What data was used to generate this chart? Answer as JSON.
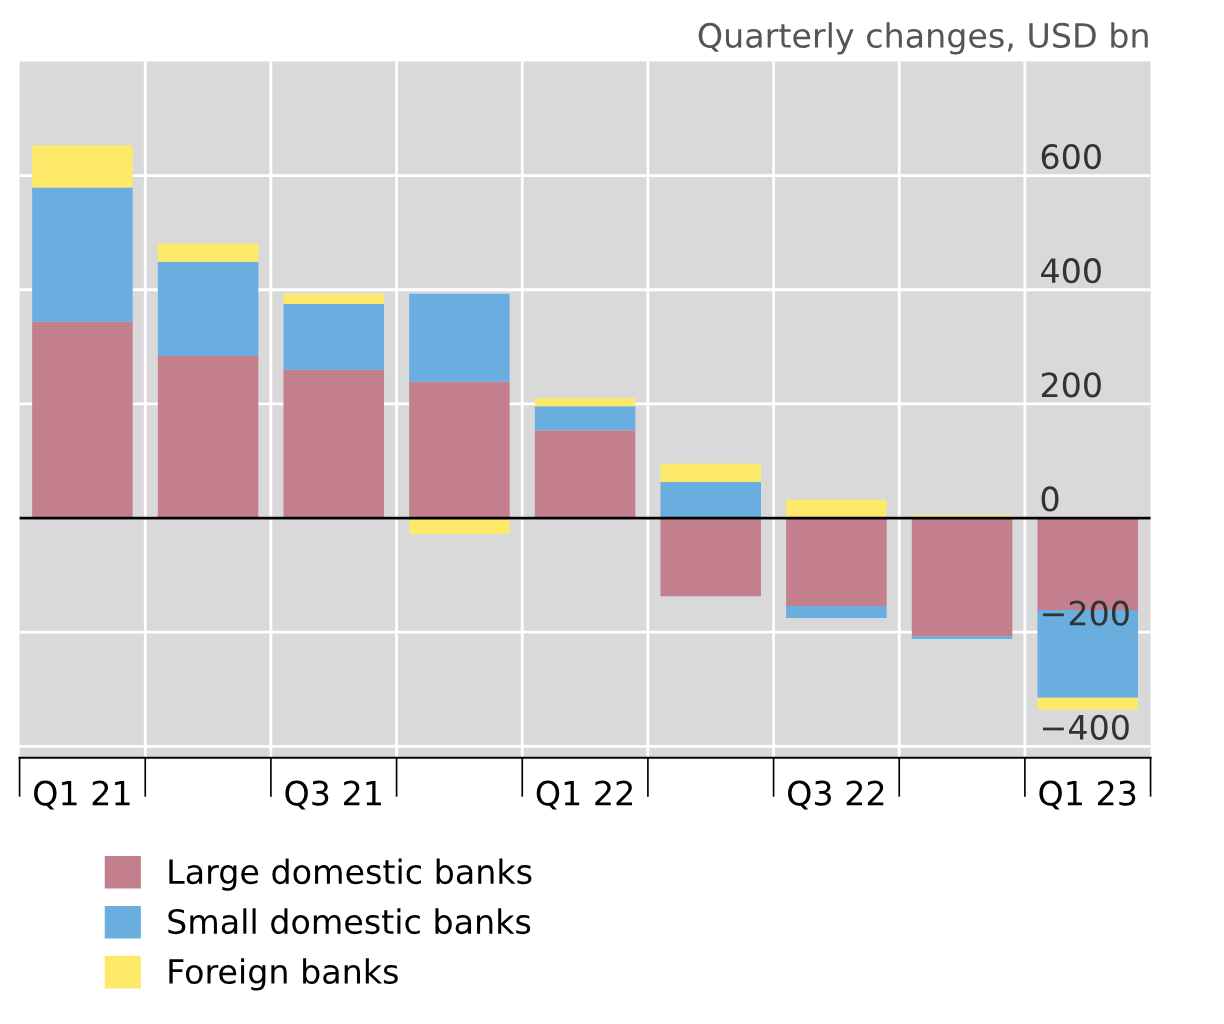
{
  "chart_data": {
    "type": "bar",
    "stacked": true,
    "title": "Quarterly changes, USD bn",
    "categories": [
      "Q1 21",
      null,
      "Q3 21",
      null,
      "Q1 22",
      null,
      "Q3 22",
      null,
      "Q1 23"
    ],
    "series": [
      {
        "name": "Large domestic banks",
        "color": "#c47f8e",
        "values": [
          344,
          284,
          260,
          239,
          154,
          -137,
          -154,
          -207,
          -161
        ]
      },
      {
        "name": "Small domestic banks",
        "color": "#6aaee0",
        "values": [
          235,
          165,
          115,
          154,
          42,
          63,
          -21,
          -5,
          -154
        ]
      },
      {
        "name": "Foreign banks",
        "color": "#fde96a",
        "values": [
          74,
          32,
          18,
          -28,
          14,
          32,
          32,
          5,
          -21
        ]
      }
    ],
    "ylim": [
      -420,
      800
    ],
    "yticks": [
      {
        "value": -400,
        "label": "−400"
      },
      {
        "value": -200,
        "label": "−200"
      },
      0,
      200,
      400,
      600
    ],
    "ref_lines": [
      {
        "axis": "y",
        "value": 0,
        "color": "#000000"
      }
    ],
    "grid": true,
    "legend": "bottom"
  }
}
